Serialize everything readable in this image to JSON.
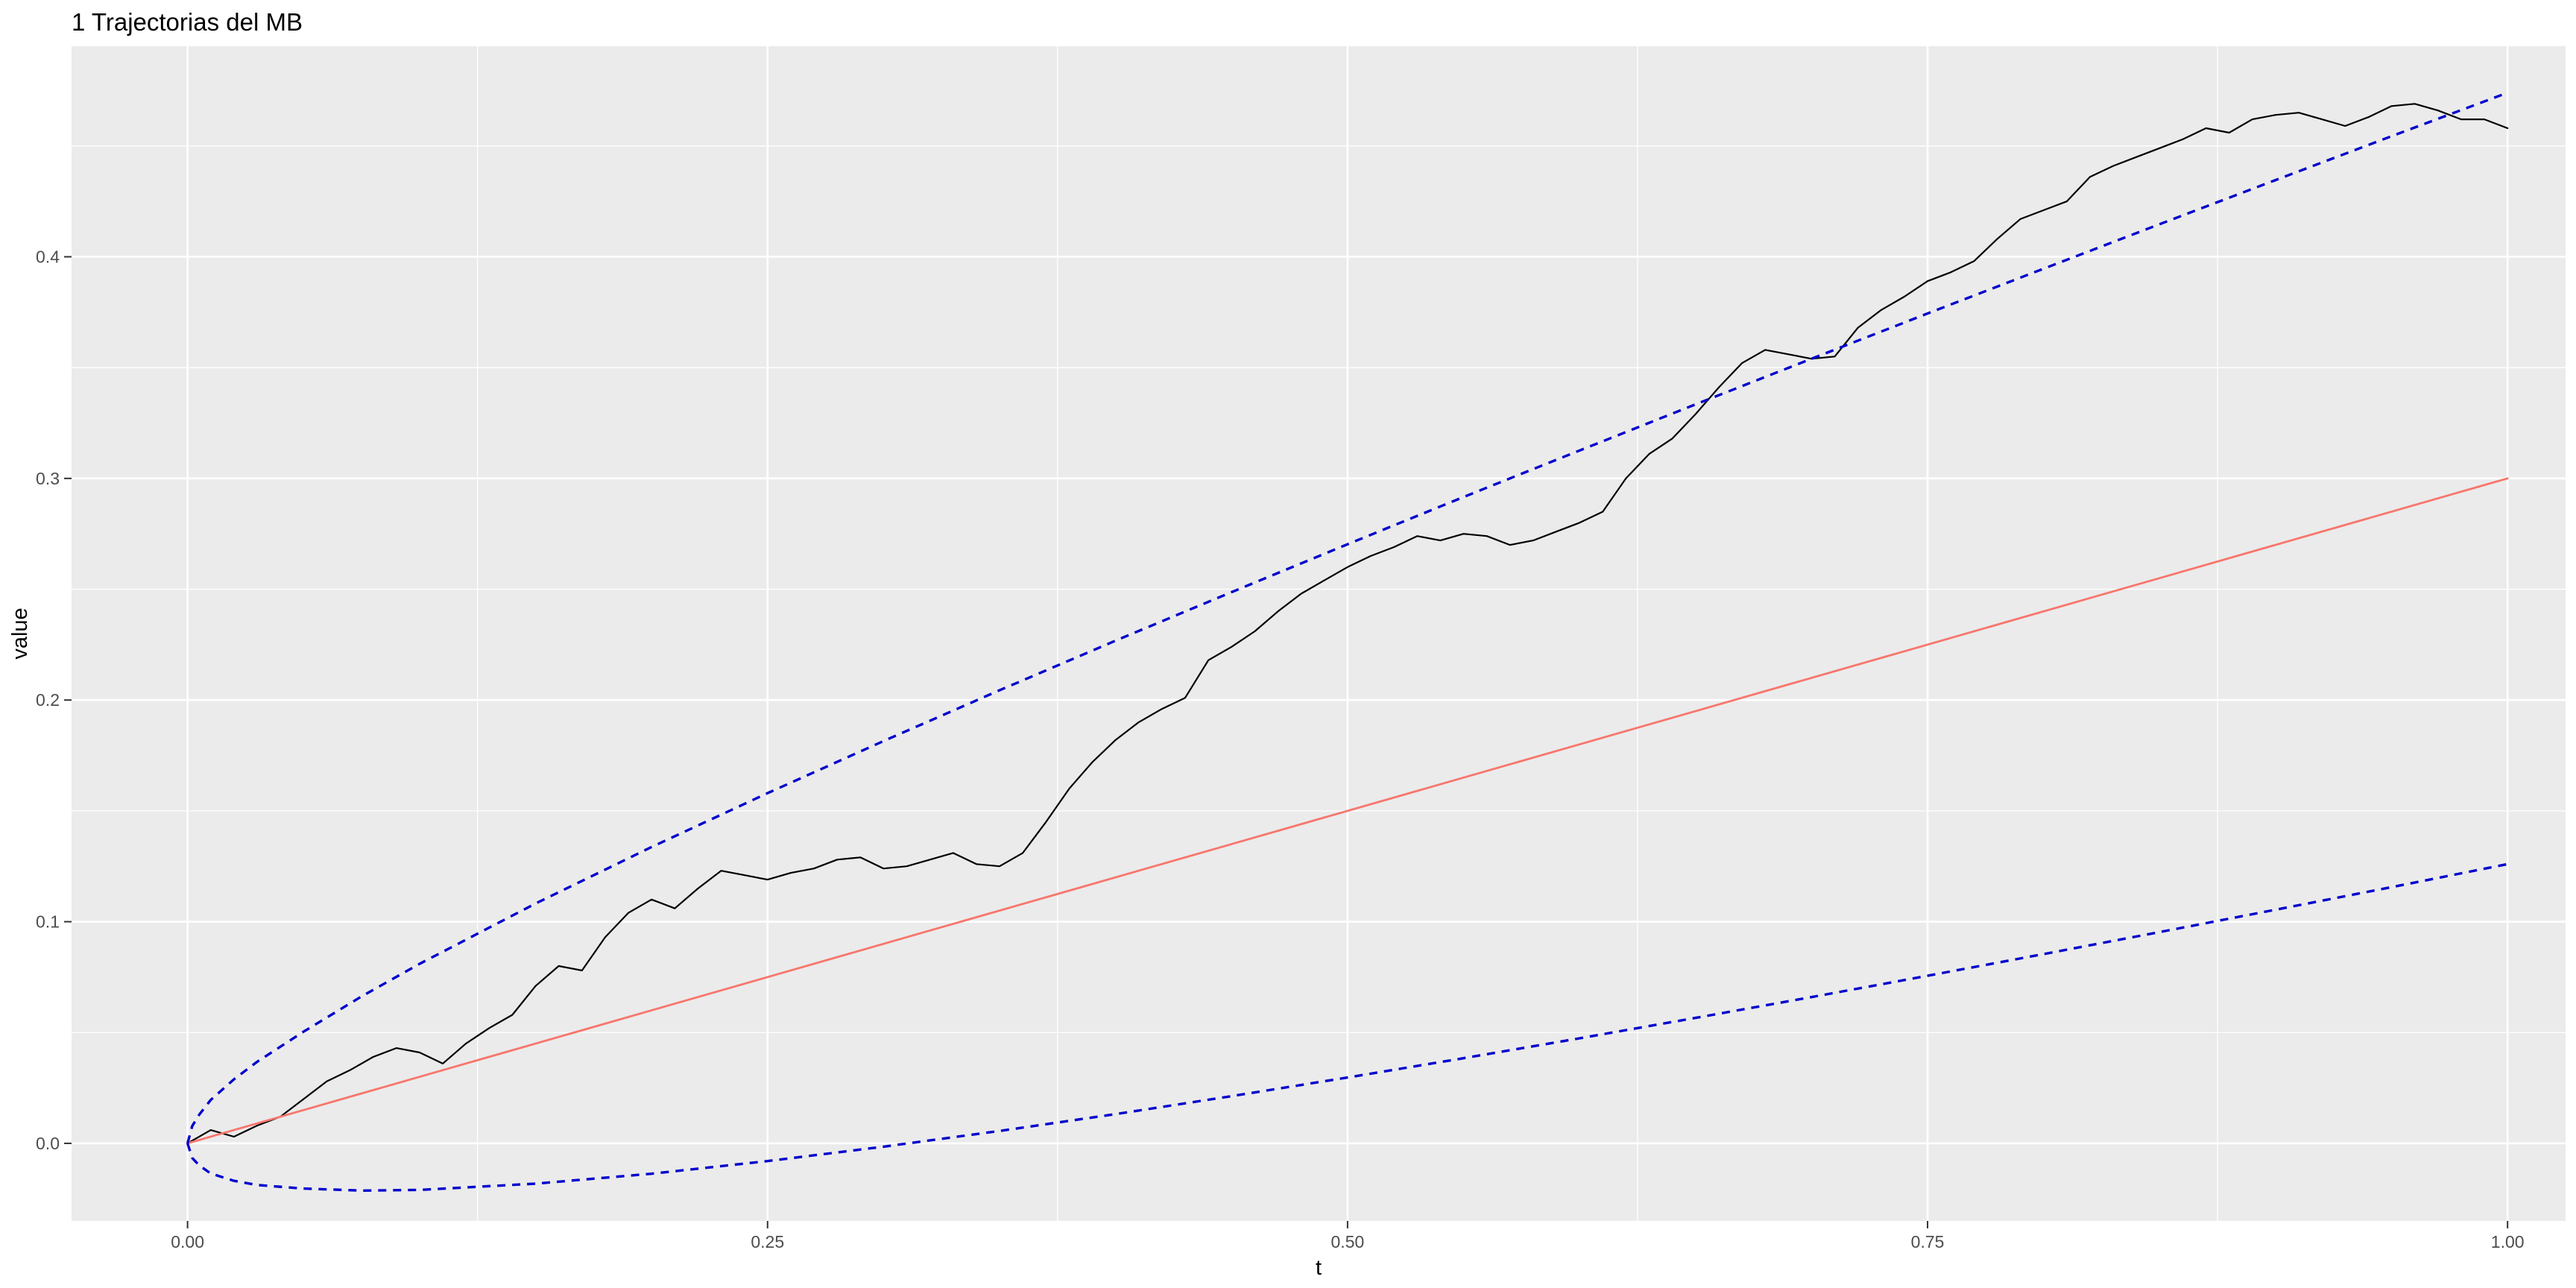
{
  "chart_data": {
    "type": "line",
    "title": "1 Trajectorias del MB",
    "xlabel": "t",
    "ylabel": "value",
    "xlim": [
      -0.05,
      1.025
    ],
    "ylim": [
      -0.035,
      0.495
    ],
    "x_ticks": [
      0.0,
      0.25,
      0.5,
      0.75,
      1.0
    ],
    "x_tick_labels": [
      "0.00",
      "0.25",
      "0.50",
      "0.75",
      "1.00"
    ],
    "y_ticks": [
      0.0,
      0.1,
      0.2,
      0.3,
      0.4
    ],
    "y_tick_labels": [
      "0.0",
      "0.1",
      "0.2",
      "0.3",
      "0.4"
    ],
    "grid": true,
    "legend": "none",
    "series": [
      {
        "color": "#000000",
        "style": "solid",
        "x": [
          0.0,
          0.01,
          0.02,
          0.03,
          0.04,
          0.05,
          0.06,
          0.07,
          0.08,
          0.09,
          0.1,
          0.11,
          0.12,
          0.13,
          0.14,
          0.15,
          0.16,
          0.17,
          0.18,
          0.19,
          0.2,
          0.21,
          0.22,
          0.23,
          0.24,
          0.25,
          0.26,
          0.27,
          0.28,
          0.29,
          0.3,
          0.31,
          0.32,
          0.33,
          0.34,
          0.35,
          0.36,
          0.37,
          0.38,
          0.39,
          0.4,
          0.41,
          0.42,
          0.43,
          0.44,
          0.45,
          0.46,
          0.47,
          0.48,
          0.49,
          0.5,
          0.51,
          0.52,
          0.53,
          0.54,
          0.55,
          0.56,
          0.57,
          0.58,
          0.59,
          0.6,
          0.61,
          0.62,
          0.63,
          0.64,
          0.65,
          0.66,
          0.67,
          0.68,
          0.69,
          0.7,
          0.71,
          0.72,
          0.73,
          0.74,
          0.75,
          0.76,
          0.77,
          0.78,
          0.79,
          0.8,
          0.81,
          0.82,
          0.83,
          0.84,
          0.85,
          0.86,
          0.87,
          0.88,
          0.89,
          0.9,
          0.91,
          0.92,
          0.93,
          0.94,
          0.95,
          0.96,
          0.97,
          0.98,
          0.99,
          1.0
        ],
        "values": [
          0.0,
          0.006,
          0.003,
          0.008,
          0.012,
          0.02,
          0.028,
          0.033,
          0.039,
          0.043,
          0.041,
          0.036,
          0.045,
          0.052,
          0.058,
          0.071,
          0.08,
          0.078,
          0.093,
          0.104,
          0.11,
          0.106,
          0.115,
          0.123,
          0.121,
          0.119,
          0.122,
          0.124,
          0.128,
          0.129,
          0.124,
          0.125,
          0.128,
          0.131,
          0.126,
          0.125,
          0.131,
          0.145,
          0.16,
          0.172,
          0.182,
          0.19,
          0.196,
          0.201,
          0.218,
          0.224,
          0.231,
          0.24,
          0.248,
          0.254,
          0.26,
          0.265,
          0.269,
          0.274,
          0.272,
          0.275,
          0.274,
          0.27,
          0.272,
          0.276,
          0.28,
          0.285,
          0.3,
          0.311,
          0.318,
          0.329,
          0.341,
          0.352,
          0.358,
          0.356,
          0.354,
          0.355,
          0.368,
          0.376,
          0.382,
          0.389,
          0.393,
          0.398,
          0.408,
          0.417,
          0.421,
          0.425,
          0.436,
          0.441,
          0.445,
          0.449,
          0.453,
          0.458,
          0.456,
          0.462,
          0.464,
          0.465,
          0.462,
          0.459,
          0.463,
          0.468,
          0.469,
          0.466,
          0.462,
          0.462,
          0.458
        ]
      },
      {
        "color": "#F8766D",
        "style": "solid",
        "x": [
          0.0,
          1.0
        ],
        "values": [
          0.0,
          0.3
        ]
      },
      {
        "color": "#0000CD",
        "style": "dashed",
        "x": [
          0.0,
          0.002,
          0.005,
          0.01,
          0.02,
          0.03,
          0.05,
          0.075,
          0.1,
          0.15,
          0.2,
          0.25,
          0.3,
          0.35,
          0.4,
          0.45,
          0.5,
          0.55,
          0.6,
          0.65,
          0.7,
          0.75,
          0.8,
          0.85,
          0.9,
          0.95,
          1.0
        ],
        "values": [
          0.0,
          0.0078,
          0.0129,
          0.0196,
          0.0289,
          0.0368,
          0.0504,
          0.0663,
          0.081,
          0.1082,
          0.1337,
          0.158,
          0.1815,
          0.2044,
          0.2268,
          0.2487,
          0.2703,
          0.2916,
          0.3126,
          0.3334,
          0.354,
          0.3744,
          0.3946,
          0.4147,
          0.4346,
          0.4544,
          0.474
        ]
      },
      {
        "color": "#0000CD",
        "style": "dashed",
        "x": [
          0.0,
          0.002,
          0.005,
          0.01,
          0.02,
          0.03,
          0.05,
          0.075,
          0.1,
          0.15,
          0.2,
          0.25,
          0.3,
          0.35,
          0.4,
          0.45,
          0.5,
          0.55,
          0.6,
          0.65,
          0.7,
          0.75,
          0.8,
          0.85,
          0.9,
          0.95,
          1.0
        ],
        "values": [
          0.0,
          -0.0066,
          -0.0099,
          -0.0136,
          -0.0169,
          -0.0188,
          -0.0204,
          -0.0213,
          -0.021,
          -0.0182,
          -0.0137,
          -0.008,
          -0.0015,
          0.0056,
          0.0132,
          0.0213,
          0.0297,
          0.0384,
          0.0474,
          0.0566,
          0.066,
          0.0756,
          0.0854,
          0.0953,
          0.1054,
          0.1156,
          0.126
        ]
      }
    ]
  }
}
